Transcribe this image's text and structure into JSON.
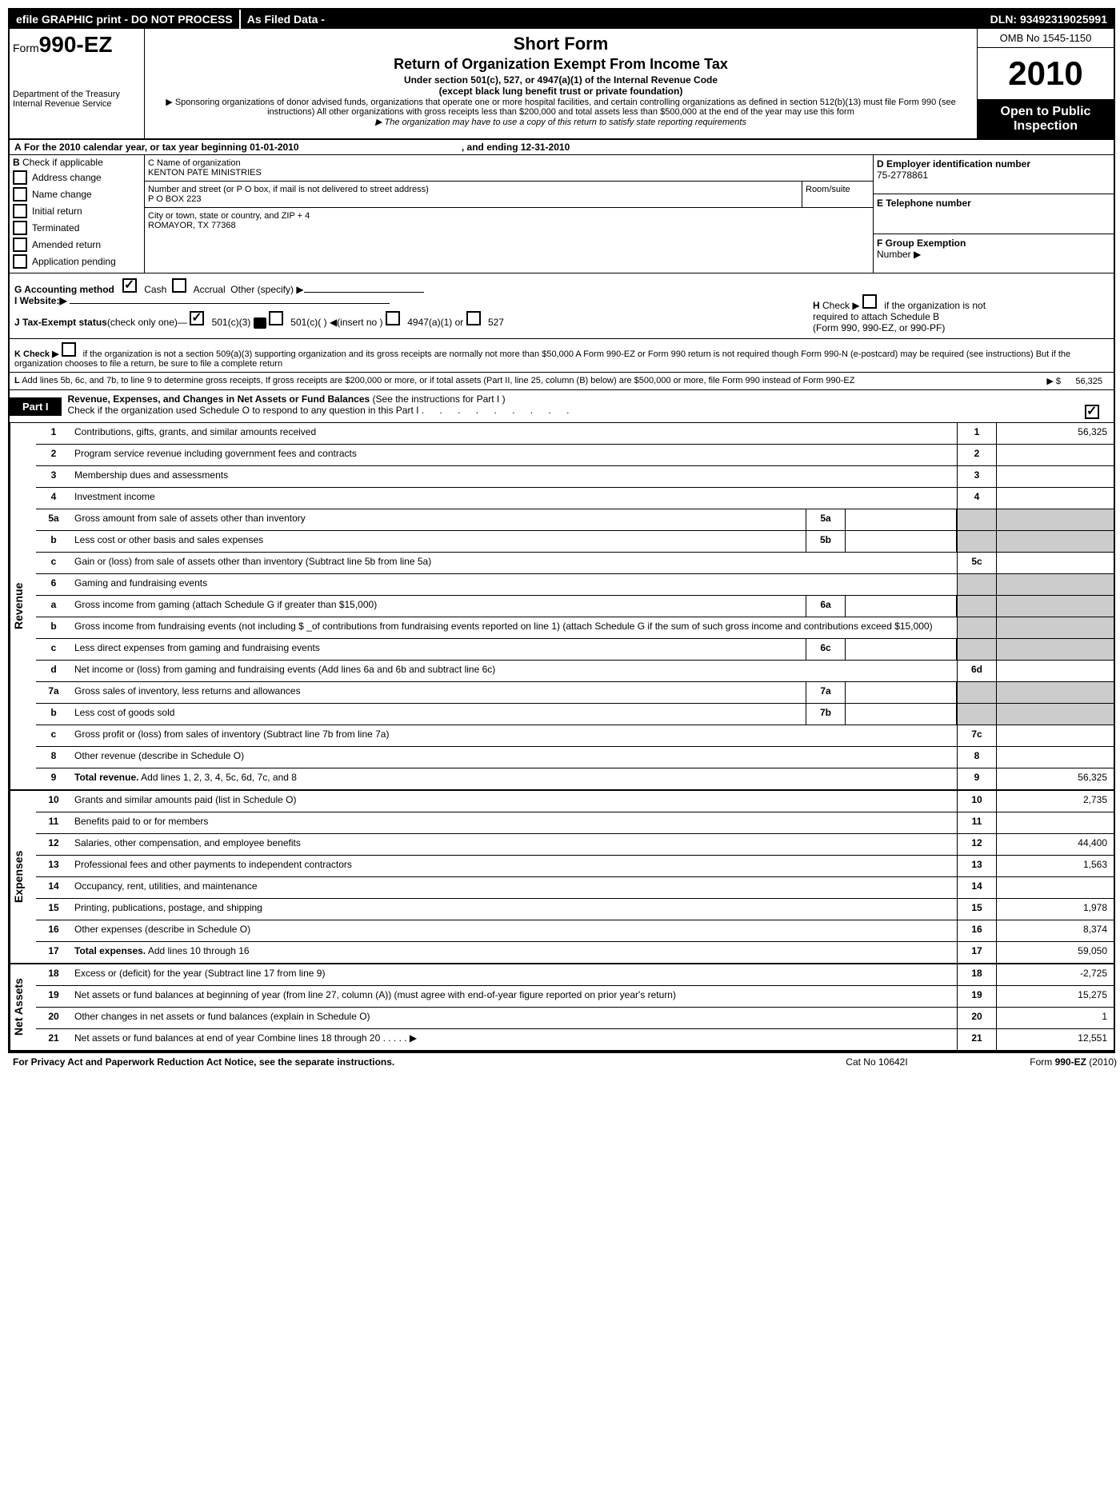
{
  "topBar": {
    "left": "efile GRAPHIC print - DO NOT PROCESS",
    "mid": "As Filed Data -",
    "right": "DLN: 93492319025991"
  },
  "header": {
    "formPrefix": "Form",
    "formNumber": "990-EZ",
    "dept1": "Department of the Treasury",
    "dept2": "Internal Revenue Service",
    "title1": "Short Form",
    "title2": "Return of Organization Exempt From Income Tax",
    "sub1": "Under section 501(c), 527, or 4947(a)(1) of the Internal Revenue Code",
    "sub2": "(except black lung benefit trust or private foundation)",
    "note1": "▶ Sponsoring organizations of donor advised funds, organizations that operate one or more hospital facilities, and certain controlling organizations as defined in section 512(b)(13) must file Form 990 (see instructions) All other organizations with gross receipts less than $200,000 and total assets less than $500,000 at the end of the year may use this form",
    "note2": "▶ The organization may have to use a copy of this return to satisfy state reporting requirements",
    "omb": "OMB No 1545-1150",
    "year": "2010",
    "openPublic1": "Open to Public",
    "openPublic2": "Inspection"
  },
  "rowA": {
    "label": "A",
    "text": "For the 2010 calendar year, or tax year beginning 01-01-2010",
    "ending": ", and ending 12-31-2010"
  },
  "sectionB": {
    "label": "B",
    "title": "Check if applicable",
    "items": [
      "Address change",
      "Name change",
      "Initial return",
      "Terminated",
      "Amended return",
      "Application pending"
    ]
  },
  "sectionC": {
    "nameLabel": "C Name of organization",
    "nameValue": "KENTON PATE MINISTRIES",
    "streetLabel": "Number and street (or P O box, if mail is not delivered to street address)",
    "roomLabel": "Room/suite",
    "streetValue": "P O BOX 223",
    "cityLabel": "City or town, state or country, and ZIP + 4",
    "cityValue": "ROMAYOR, TX  77368"
  },
  "sectionD": {
    "label": "D Employer identification number",
    "value": "75-2778861"
  },
  "sectionE": {
    "label": "E Telephone number",
    "value": ""
  },
  "sectionF": {
    "label": "F Group Exemption",
    "label2": "Number ▶"
  },
  "sectionG": {
    "label": "G Accounting method",
    "cash": "Cash",
    "accrual": "Accrual",
    "other": "Other (specify) ▶"
  },
  "sectionI": {
    "label": "I Website:▶"
  },
  "sectionJ": {
    "label": "J Tax-Exempt status",
    "note": "(check only one)—",
    "opt1": "501(c)(3)",
    "opt2": "501(c)(  ) ◀(insert no )",
    "opt3": "4947(a)(1) or",
    "opt4": "527"
  },
  "sectionH": {
    "label": "H",
    "text1": "Check ▶",
    "text2": "if the organization is not",
    "text3": "required to attach Schedule B",
    "text4": "(Form 990, 990-EZ, or 990-PF)"
  },
  "sectionK": {
    "label": "K Check ▶",
    "text": "if the organization is not a section 509(a)(3) supporting organization and its gross receipts are normally not more than $50,000  A Form 990-EZ or Form 990 return is not required though Form 990-N (e-postcard) may be required (see instructions)  But if the organization chooses to file a return, be sure to file a complete return"
  },
  "sectionL": {
    "label": "L",
    "text": "Add lines 5b, 6c, and 7b, to line 9 to determine gross receipts, If gross receipts are $200,000 or more, or if total assets (Part II, line 25, column (B) below) are $500,000 or more, file Form 990 instead of Form 990-EZ",
    "amountLabel": "▶ $",
    "amount": "56,325"
  },
  "part1": {
    "label": "Part I",
    "title": "Revenue, Expenses, and Changes in Net Assets or Fund Balances",
    "titleNote": "(See the instructions for Part I )",
    "checkText": "Check if the organization used Schedule O to respond to any question in this Part I"
  },
  "revenue": {
    "label": "Revenue",
    "lines": [
      {
        "num": "1",
        "desc": "Contributions, gifts, grants, and similar amounts received",
        "rnum": "1",
        "rval": "56,325"
      },
      {
        "num": "2",
        "desc": "Program service revenue including government fees and contracts",
        "rnum": "2",
        "rval": ""
      },
      {
        "num": "3",
        "desc": "Membership dues and assessments",
        "rnum": "3",
        "rval": ""
      },
      {
        "num": "4",
        "desc": "Investment income",
        "rnum": "4",
        "rval": ""
      },
      {
        "num": "5a",
        "desc": "Gross amount from sale of assets other than inventory",
        "subnum": "5a",
        "subval": "",
        "blocked": true
      },
      {
        "num": "b",
        "desc": "Less cost or other basis and sales expenses",
        "subnum": "5b",
        "subval": "",
        "blocked": true
      },
      {
        "num": "c",
        "desc": "Gain or (loss) from sale of assets other than inventory (Subtract line 5b from line 5a)",
        "rnum": "5c",
        "rval": ""
      },
      {
        "num": "6",
        "desc": "Gaming and fundraising events",
        "blocked": true,
        "noRight": true
      },
      {
        "num": "a",
        "desc": "Gross income from gaming (attach Schedule G if greater than $15,000)",
        "subnum": "6a",
        "subval": "",
        "blocked": true
      },
      {
        "num": "b",
        "desc": "Gross income from fundraising events (not including $ _of contributions from fundraising events reported on line 1) (attach Schedule G if the sum of such gross income and contributions exceed $15,000)",
        "blocked": true,
        "noRight": true
      },
      {
        "num": "c",
        "desc": "Less direct expenses from gaming and fundraising events",
        "subnum": "6c",
        "subval": "",
        "blocked": true
      },
      {
        "num": "d",
        "desc": "Net income or (loss) from gaming and fundraising events (Add lines 6a and 6b and subtract line 6c)",
        "rnum": "6d",
        "rval": ""
      },
      {
        "num": "7a",
        "desc": "Gross sales of inventory, less returns and allowances",
        "subnum": "7a",
        "subval": "",
        "blocked": true
      },
      {
        "num": "b",
        "desc": "Less cost of goods sold",
        "subnum": "7b",
        "subval": "",
        "blocked": true
      },
      {
        "num": "c",
        "desc": "Gross profit or (loss) from sales of inventory (Subtract line 7b from line 7a)",
        "rnum": "7c",
        "rval": ""
      },
      {
        "num": "8",
        "desc": "Other revenue (describe in Schedule O)",
        "rnum": "8",
        "rval": ""
      },
      {
        "num": "9",
        "desc": "Total revenue. Add lines 1, 2, 3, 4, 5c, 6d, 7c, and 8",
        "rnum": "9",
        "rval": "56,325",
        "bold": true
      }
    ]
  },
  "expenses": {
    "label": "Expenses",
    "lines": [
      {
        "num": "10",
        "desc": "Grants and similar amounts paid (list in Schedule O)",
        "rnum": "10",
        "rval": "2,735"
      },
      {
        "num": "11",
        "desc": "Benefits paid to or for members",
        "rnum": "11",
        "rval": ""
      },
      {
        "num": "12",
        "desc": "Salaries, other compensation, and employee benefits",
        "rnum": "12",
        "rval": "44,400"
      },
      {
        "num": "13",
        "desc": "Professional fees and other payments to independent contractors",
        "rnum": "13",
        "rval": "1,563"
      },
      {
        "num": "14",
        "desc": "Occupancy, rent, utilities, and maintenance",
        "rnum": "14",
        "rval": ""
      },
      {
        "num": "15",
        "desc": "Printing, publications, postage, and shipping",
        "rnum": "15",
        "rval": "1,978"
      },
      {
        "num": "16",
        "desc": "Other expenses (describe in Schedule O)",
        "rnum": "16",
        "rval": "8,374"
      },
      {
        "num": "17",
        "desc": "Total expenses. Add lines 10 through 16",
        "rnum": "17",
        "rval": "59,050",
        "bold": true
      }
    ]
  },
  "netAssets": {
    "label": "Net Assets",
    "lines": [
      {
        "num": "18",
        "desc": "Excess or (deficit) for the year (Subtract line 17 from line 9)",
        "rnum": "18",
        "rval": "-2,725"
      },
      {
        "num": "19",
        "desc": "Net assets or fund balances at beginning of year (from line 27, column (A)) (must agree with end-of-year figure reported on prior year's return)",
        "rnum": "19",
        "rval": "15,275"
      },
      {
        "num": "20",
        "desc": "Other changes in net assets or fund balances (explain in Schedule O)",
        "rnum": "20",
        "rval": "1"
      },
      {
        "num": "21",
        "desc": "Net assets or fund balances at end of year Combine lines 18 through 20    .   .   .   .   . ▶",
        "rnum": "21",
        "rval": "12,551"
      }
    ]
  },
  "footer": {
    "left": "For Privacy Act and Paperwork Reduction Act Notice, see the separate instructions.",
    "mid": "Cat No 10642I",
    "right": "Form 990-EZ (2010)"
  }
}
